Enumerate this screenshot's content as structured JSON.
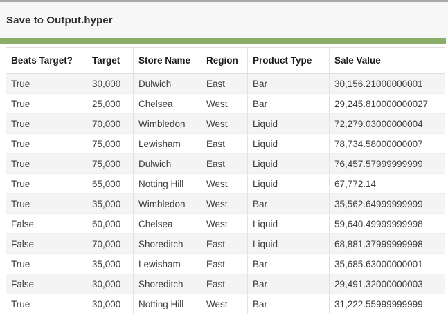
{
  "window": {
    "title": "Save to Output.hyper"
  },
  "progress": {
    "bar_color": "#8aad6a"
  },
  "table": {
    "columns": [
      "Beats Target?",
      "Target",
      "Store Name",
      "Region",
      "Product Type",
      "Sale Value"
    ],
    "rows": [
      [
        "True",
        "30,000",
        "Dulwich",
        "East",
        "Bar",
        "30,156.21000000001"
      ],
      [
        "True",
        "25,000",
        "Chelsea",
        "West",
        "Bar",
        "29,245.810000000027"
      ],
      [
        "True",
        "70,000",
        "Wimbledon",
        "West",
        "Liquid",
        "72,279.03000000004"
      ],
      [
        "True",
        "75,000",
        "Lewisham",
        "East",
        "Liquid",
        "78,734.58000000007"
      ],
      [
        "True",
        "75,000",
        "Dulwich",
        "East",
        "Liquid",
        "76,457.57999999999"
      ],
      [
        "True",
        "65,000",
        "Notting Hill",
        "West",
        "Liquid",
        "67,772.14"
      ],
      [
        "True",
        "35,000",
        "Wimbledon",
        "West",
        "Bar",
        "35,562.64999999999"
      ],
      [
        "False",
        "60,000",
        "Chelsea",
        "West",
        "Liquid",
        "59,640.49999999998"
      ],
      [
        "False",
        "70,000",
        "Shoreditch",
        "East",
        "Liquid",
        "68,881.37999999998"
      ],
      [
        "True",
        "35,000",
        "Lewisham",
        "East",
        "Bar",
        "35,685.63000000001"
      ],
      [
        "False",
        "30,000",
        "Shoreditch",
        "East",
        "Bar",
        "29,491.32000000003"
      ],
      [
        "True",
        "30,000",
        "Notting Hill",
        "West",
        "Bar",
        "31,222.55999999999"
      ]
    ]
  }
}
